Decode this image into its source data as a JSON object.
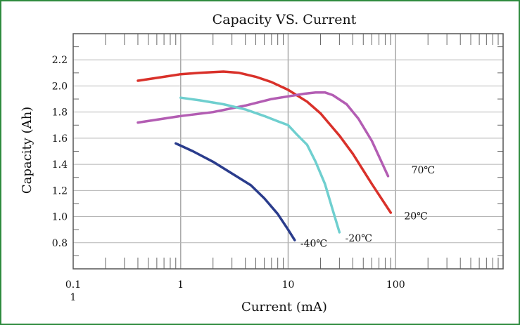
{
  "chart_data": {
    "type": "line",
    "title": "Capacity VS. Current",
    "xlabel": "Current (mA)",
    "ylabel": "Capacity (Ah)",
    "x_scale": "log",
    "xlim": [
      0.1,
      1000
    ],
    "ylim": [
      0.6,
      2.4
    ],
    "x_ticks": [
      "0.1",
      "1",
      "10",
      "100"
    ],
    "x_extra_label": "1",
    "y_ticks": [
      "0.8",
      "1.0",
      "1.2",
      "1.4",
      "1.6",
      "1.8",
      "2.0",
      "2.2"
    ],
    "grid": true,
    "series": [
      {
        "name": "20℃",
        "color": "#d9312a",
        "x": [
          0.4,
          0.7,
          1,
          1.5,
          2.5,
          3.5,
          5,
          7,
          10,
          15,
          20,
          30,
          40,
          60,
          90
        ],
        "y": [
          2.04,
          2.07,
          2.09,
          2.1,
          2.11,
          2.1,
          2.07,
          2.03,
          1.97,
          1.88,
          1.79,
          1.62,
          1.48,
          1.25,
          1.03
        ]
      },
      {
        "name": "70℃",
        "color": "#b35db3",
        "x": [
          0.4,
          1,
          2,
          4,
          7,
          10,
          14,
          18,
          22,
          26,
          35,
          45,
          60,
          85
        ],
        "y": [
          1.72,
          1.77,
          1.8,
          1.85,
          1.9,
          1.92,
          1.94,
          1.95,
          1.95,
          1.93,
          1.86,
          1.75,
          1.58,
          1.31
        ]
      },
      {
        "name": "-20℃",
        "color": "#6fcfcf",
        "x": [
          1,
          1.5,
          2.5,
          4,
          6,
          8,
          10,
          12,
          15,
          18,
          22,
          26,
          30
        ],
        "y": [
          1.91,
          1.89,
          1.86,
          1.82,
          1.77,
          1.73,
          1.7,
          1.63,
          1.55,
          1.42,
          1.25,
          1.05,
          0.88
        ]
      },
      {
        "name": "-40℃",
        "color": "#2a3c8c",
        "x": [
          0.9,
          1.3,
          2,
          3,
          4.5,
          6,
          8,
          10,
          11.5
        ],
        "y": [
          1.56,
          1.5,
          1.42,
          1.33,
          1.24,
          1.14,
          1.02,
          0.9,
          0.82
        ]
      }
    ],
    "series_labels": [
      {
        "text": "70℃",
        "x": 140,
        "y": 1.33
      },
      {
        "text": "20℃",
        "x": 120,
        "y": 0.98
      },
      {
        "text": "-20℃",
        "x": 34,
        "y": 0.81
      },
      {
        "text": "-40℃",
        "x": 13,
        "y": 0.77
      }
    ]
  }
}
